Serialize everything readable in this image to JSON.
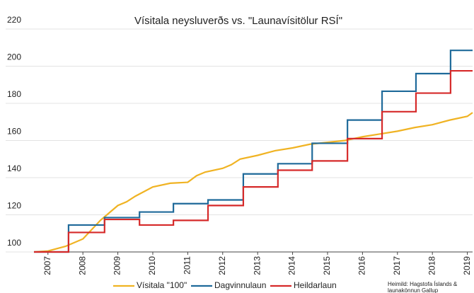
{
  "chart_data": {
    "type": "line",
    "title": "Vísitala neysluverðs vs. \"Launavísitölur RSÍ\"",
    "source": [
      "Heimild: Hagstofa Íslands  &",
      "launakönnun Gallup"
    ],
    "xlim": [
      2006.6,
      2019.15
    ],
    "xticks": [
      2007,
      2008,
      2009,
      2010,
      2011,
      2012,
      2013,
      2014,
      2015,
      2016,
      2017,
      2018,
      2019
    ],
    "ylim": [
      100,
      220
    ],
    "yticks": [
      100,
      120,
      140,
      160,
      180,
      200,
      220
    ],
    "grid": true,
    "legend": "bottom",
    "series": [
      {
        "name": "Vísitala \"100\"",
        "color": "#f0b323",
        "step": false,
        "x": [
          2006.6,
          2007.0,
          2007.5,
          2008.0,
          2008.5,
          2008.75,
          2009.0,
          2009.25,
          2009.5,
          2010.0,
          2010.5,
          2011.0,
          2011.25,
          2011.5,
          2012.0,
          2012.25,
          2012.5,
          2013.0,
          2013.5,
          2014.0,
          2014.5,
          2015.0,
          2015.5,
          2016.0,
          2016.5,
          2017.0,
          2017.5,
          2018.0,
          2018.5,
          2019.0,
          2019.15
        ],
        "values": [
          100,
          100.5,
          103,
          107,
          117,
          121,
          125,
          127,
          130,
          135,
          137,
          137.5,
          141,
          143,
          145,
          147,
          150,
          152,
          154.5,
          156,
          158,
          159,
          160,
          162,
          163.5,
          165,
          167,
          168.5,
          171,
          173,
          175
        ]
      },
      {
        "name": "Dagvinnulaun",
        "color": "#1f6a9a",
        "step": true,
        "x": [
          2006.6,
          2007.59,
          2008.62,
          2009.62,
          2010.59,
          2011.58,
          2012.59,
          2013.58,
          2014.56,
          2015.57,
          2016.56,
          2017.53,
          2018.52
        ],
        "values": [
          100,
          114.5,
          118.5,
          121.5,
          126,
          128,
          142,
          147.5,
          158.5,
          171,
          186.5,
          196,
          208.5
        ]
      },
      {
        "name": "Heildarlaun",
        "color": "#d62a2a",
        "step": true,
        "x": [
          2006.6,
          2007.59,
          2008.62,
          2009.62,
          2010.59,
          2011.58,
          2012.59,
          2013.58,
          2014.56,
          2015.57,
          2016.56,
          2017.53,
          2018.52
        ],
        "values": [
          100,
          110.5,
          117.5,
          114.5,
          117,
          125,
          135,
          144,
          149,
          161,
          175.5,
          185.5,
          197.5
        ]
      }
    ]
  }
}
